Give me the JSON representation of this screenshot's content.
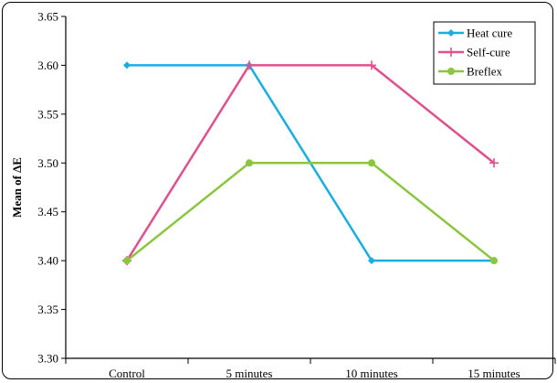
{
  "chart_data": {
    "type": "line",
    "title": "",
    "xlabel": "",
    "ylabel": "Mean of ΔE",
    "categories": [
      "Control",
      "5 minutes",
      "10 minutes",
      "15 minutes"
    ],
    "ylim": [
      3.3,
      3.65
    ],
    "yticks": [
      "3.30",
      "3.35",
      "3.40",
      "3.45",
      "3.50",
      "3.55",
      "3.60",
      "3.65"
    ],
    "grid": false,
    "legend": "top-right",
    "series": [
      {
        "name": "Heat cure",
        "values": [
          3.6,
          3.6,
          3.4,
          3.4
        ],
        "color": "#1AAEE0",
        "marker": "diamond"
      },
      {
        "name": "Self-cure",
        "values": [
          3.4,
          3.6,
          3.6,
          3.5
        ],
        "color": "#E0508C",
        "marker": "plus"
      },
      {
        "name": "Breflex",
        "values": [
          3.4,
          3.5,
          3.5,
          3.4
        ],
        "color": "#8CC63F",
        "marker": "circle"
      }
    ]
  }
}
